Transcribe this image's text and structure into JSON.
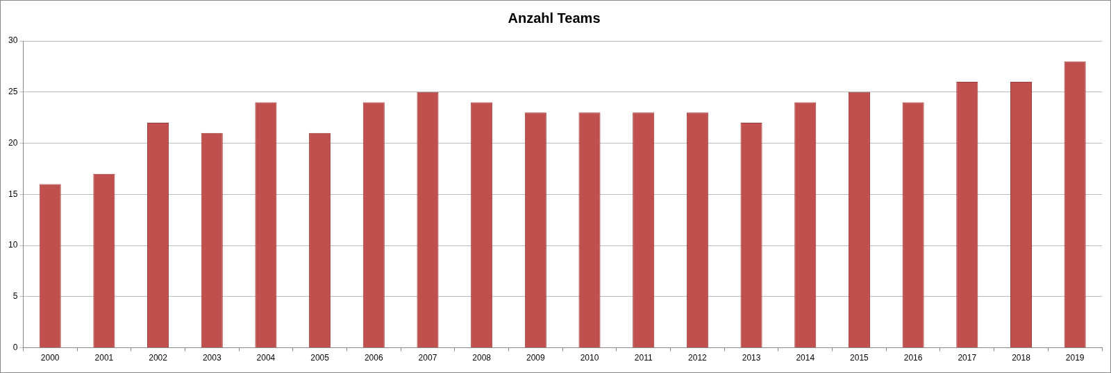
{
  "chart_data": {
    "type": "bar",
    "title": "Anzahl Teams",
    "categories": [
      "2000",
      "2001",
      "2002",
      "2003",
      "2004",
      "2005",
      "2006",
      "2007",
      "2008",
      "2009",
      "2010",
      "2011",
      "2012",
      "2013",
      "2014",
      "2015",
      "2016",
      "2017",
      "2018",
      "2019"
    ],
    "values": [
      16,
      17,
      22,
      21,
      24,
      21,
      24,
      25,
      24,
      23,
      23,
      23,
      23,
      22,
      24,
      25,
      24,
      26,
      26,
      28
    ],
    "color": "#c0504d",
    "ylim": [
      0,
      30
    ],
    "yticks": [
      0,
      5,
      10,
      15,
      20,
      25,
      30
    ],
    "grid": "y",
    "legend": false
  }
}
